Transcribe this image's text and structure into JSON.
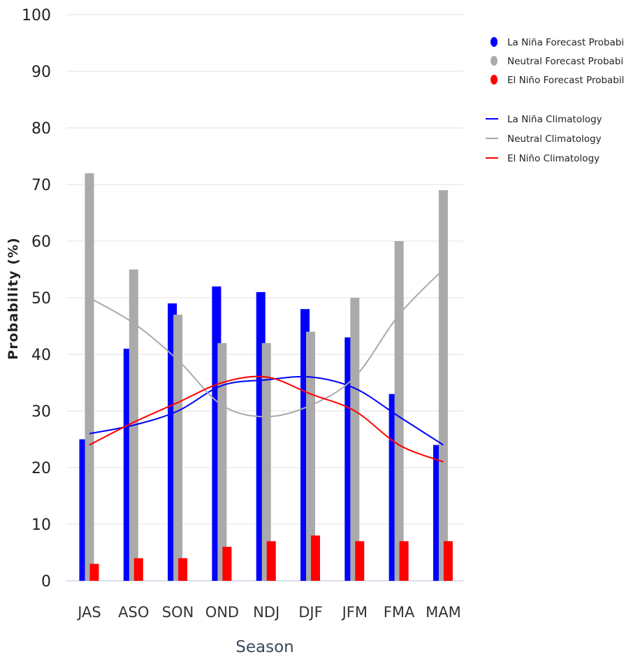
{
  "chart_data": {
    "type": "bar",
    "xlabel": "Season",
    "ylabel": "Probability (%)",
    "ylim": [
      0,
      100
    ],
    "yticks": [
      0,
      10,
      20,
      30,
      40,
      50,
      60,
      70,
      80,
      90,
      100
    ],
    "grid": true,
    "legend_position": "right",
    "categories": [
      "JAS",
      "ASO",
      "SON",
      "OND",
      "NDJ",
      "DJF",
      "JFM",
      "FMA",
      "MAM"
    ],
    "series": [
      {
        "name": "La Niña Forecast Probability",
        "kind": "bar",
        "color": "#0000ff",
        "values": [
          25,
          41,
          49,
          52,
          51,
          48,
          43,
          33,
          24
        ]
      },
      {
        "name": "Neutral Forecast Probability",
        "kind": "bar",
        "color": "#aaaaaa",
        "values": [
          72,
          55,
          47,
          42,
          42,
          44,
          50,
          60,
          69
        ]
      },
      {
        "name": "El Niño Forecast Probability",
        "kind": "bar",
        "color": "#ff0000",
        "values": [
          3,
          4,
          4,
          6,
          7,
          8,
          7,
          7,
          7
        ]
      },
      {
        "name": "La Niña Climatology",
        "kind": "line",
        "color": "#0000ff",
        "values": [
          26,
          27.5,
          30,
          34.5,
          35.5,
          36,
          34,
          29,
          24
        ]
      },
      {
        "name": "Neutral Climatology",
        "kind": "line",
        "color": "#aaaaaa",
        "values": [
          50,
          45.5,
          39,
          31,
          29,
          31,
          36,
          47,
          55
        ]
      },
      {
        "name": "El Niño Climatology",
        "kind": "line",
        "color": "#ff0000",
        "values": [
          24,
          28,
          31.5,
          35,
          36,
          33,
          30,
          24,
          21
        ]
      }
    ]
  }
}
